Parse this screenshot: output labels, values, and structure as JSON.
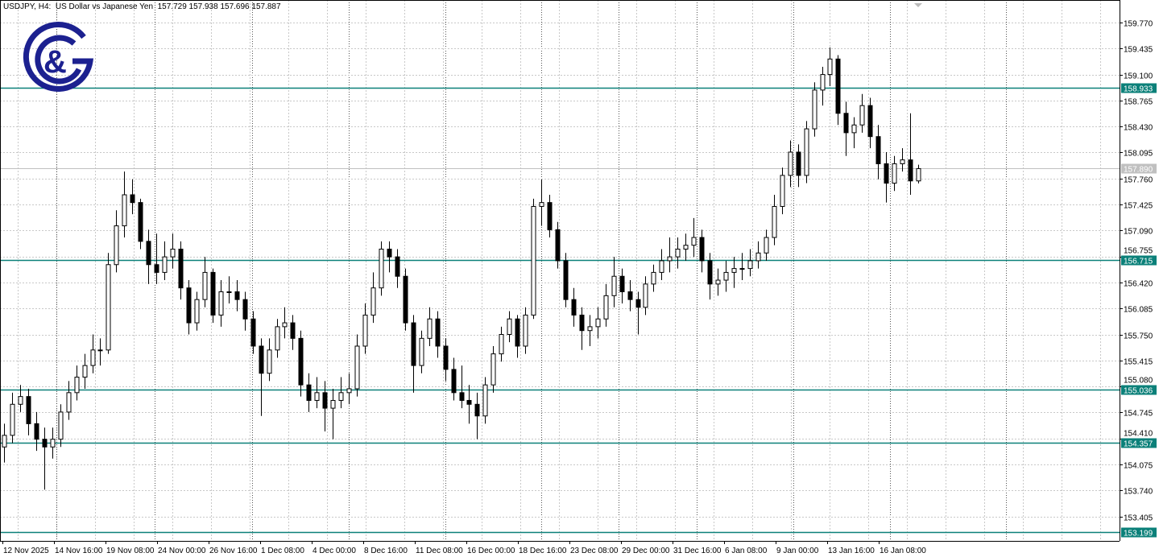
{
  "header": {
    "symbol": "USDJPY, H4:",
    "description": "US Dollar vs Japanese Yen",
    "ohlc": "157.729 157.938 157.696 157.887"
  },
  "logo": {
    "text": "G&G",
    "color": "#1c2190"
  },
  "colors": {
    "level_line": "#0b8079",
    "current_price": "#c0c0c0",
    "bull_body": "#ffffff",
    "bear_body": "#000000",
    "grid": "#c8c8c8"
  },
  "chart_data": {
    "type": "candlestick",
    "title": "USDJPY, H4",
    "ylim": [
      153.199,
      159.95
    ],
    "grid": true,
    "y_ticks": [
      "159.770",
      "159.435",
      "159.100",
      "158.765",
      "158.430",
      "158.095",
      "157.760",
      "157.425",
      "157.090",
      "156.755",
      "156.420",
      "156.085",
      "155.750",
      "155.415",
      "155.080",
      "154.745",
      "154.410",
      "154.075",
      "153.740",
      "153.405"
    ],
    "x_ticks": [
      "12 Nov 2025",
      "14 Nov 16:00",
      "19 Nov 08:00",
      "24 Nov 00:00",
      "26 Nov 16:00",
      "1 Dec 08:00",
      "4 Dec 00:00",
      "8 Dec 16:00",
      "11 Dec 08:00",
      "16 Dec 00:00",
      "18 Dec 16:00",
      "23 Dec 08:00",
      "29 Dec 00:00",
      "31 Dec 16:00",
      "6 Jan 08:00",
      "9 Jan 00:00",
      "13 Jan 16:00",
      "16 Jan 08:00"
    ],
    "levels": [
      "158.933",
      "156.715",
      "155.036",
      "154.357",
      "153.199"
    ],
    "current_price": "157.890",
    "candles_ohlc": [
      [
        154.3,
        154.6,
        154.1,
        154.45
      ],
      [
        154.45,
        155.0,
        154.35,
        154.85
      ],
      [
        154.85,
        155.1,
        154.75,
        154.95
      ],
      [
        154.95,
        155.05,
        154.45,
        154.6
      ],
      [
        154.6,
        154.75,
        154.25,
        154.4
      ],
      [
        154.4,
        154.55,
        153.75,
        154.3
      ],
      [
        154.3,
        154.55,
        154.15,
        154.4
      ],
      [
        154.4,
        154.85,
        154.3,
        154.75
      ],
      [
        154.75,
        155.15,
        154.65,
        155.0
      ],
      [
        155.0,
        155.35,
        154.9,
        155.2
      ],
      [
        155.2,
        155.5,
        155.05,
        155.35
      ],
      [
        155.35,
        155.75,
        155.25,
        155.55
      ],
      [
        155.55,
        155.7,
        155.35,
        155.55
      ],
      [
        155.55,
        156.8,
        155.5,
        156.65
      ],
      [
        156.65,
        157.35,
        156.55,
        157.15
      ],
      [
        157.15,
        157.85,
        157.0,
        157.55
      ],
      [
        157.55,
        157.75,
        157.3,
        157.45
      ],
      [
        157.45,
        157.5,
        156.85,
        156.95
      ],
      [
        156.95,
        157.1,
        156.4,
        156.65
      ],
      [
        156.65,
        157.05,
        156.4,
        156.55
      ],
      [
        156.55,
        156.95,
        156.45,
        156.75
      ],
      [
        156.75,
        157.05,
        156.6,
        156.85
      ],
      [
        156.85,
        156.95,
        156.2,
        156.35
      ],
      [
        156.35,
        156.45,
        155.75,
        155.9
      ],
      [
        155.9,
        156.3,
        155.8,
        156.2
      ],
      [
        156.2,
        156.75,
        156.1,
        156.55
      ],
      [
        156.55,
        156.6,
        155.9,
        156.0
      ],
      [
        156.0,
        156.45,
        155.85,
        156.3
      ],
      [
        156.3,
        156.5,
        156.15,
        156.3
      ],
      [
        156.3,
        156.45,
        156.05,
        156.2
      ],
      [
        156.2,
        156.3,
        155.8,
        155.95
      ],
      [
        155.95,
        156.05,
        155.5,
        155.6
      ],
      [
        155.6,
        155.7,
        154.7,
        155.25
      ],
      [
        155.25,
        155.7,
        155.15,
        155.55
      ],
      [
        155.55,
        155.95,
        155.45,
        155.85
      ],
      [
        155.85,
        156.1,
        155.7,
        155.9
      ],
      [
        155.9,
        156.0,
        155.55,
        155.7
      ],
      [
        155.7,
        155.8,
        154.95,
        155.1
      ],
      [
        155.1,
        155.25,
        154.75,
        154.9
      ],
      [
        154.9,
        155.2,
        154.8,
        155.0
      ],
      [
        155.0,
        155.15,
        154.5,
        154.8
      ],
      [
        154.8,
        155.05,
        154.4,
        154.9
      ],
      [
        154.9,
        155.2,
        154.8,
        155.0
      ],
      [
        155.0,
        155.25,
        154.85,
        155.05
      ],
      [
        155.05,
        155.75,
        154.95,
        155.6
      ],
      [
        155.6,
        156.15,
        155.5,
        156.0
      ],
      [
        156.0,
        156.55,
        155.9,
        156.35
      ],
      [
        156.35,
        156.95,
        156.25,
        156.85
      ],
      [
        156.85,
        156.95,
        156.55,
        156.75
      ],
      [
        156.75,
        156.85,
        156.35,
        156.5
      ],
      [
        156.5,
        156.6,
        155.8,
        155.9
      ],
      [
        155.9,
        156.0,
        155.0,
        155.35
      ],
      [
        155.35,
        155.8,
        155.25,
        155.7
      ],
      [
        155.7,
        156.1,
        155.6,
        155.95
      ],
      [
        155.95,
        156.05,
        155.45,
        155.6
      ],
      [
        155.6,
        155.7,
        155.15,
        155.3
      ],
      [
        155.3,
        155.45,
        154.9,
        155.0
      ],
      [
        155.0,
        155.35,
        154.8,
        154.9
      ],
      [
        154.9,
        155.1,
        154.6,
        154.85
      ],
      [
        154.85,
        155.0,
        154.4,
        154.7
      ],
      [
        154.7,
        155.2,
        154.6,
        155.1
      ],
      [
        155.1,
        155.6,
        155.0,
        155.5
      ],
      [
        155.5,
        155.85,
        155.4,
        155.75
      ],
      [
        155.75,
        156.05,
        155.65,
        155.95
      ],
      [
        155.95,
        156.0,
        155.45,
        155.6
      ],
      [
        155.6,
        156.1,
        155.5,
        156.0
      ],
      [
        156.0,
        157.5,
        155.95,
        157.4
      ],
      [
        157.4,
        157.75,
        157.15,
        157.45
      ],
      [
        157.45,
        157.55,
        157.0,
        157.1
      ],
      [
        157.1,
        157.2,
        156.6,
        156.7
      ],
      [
        156.7,
        156.8,
        156.1,
        156.2
      ],
      [
        156.2,
        156.35,
        155.85,
        156.0
      ],
      [
        156.0,
        156.1,
        155.55,
        155.8
      ],
      [
        155.8,
        156.0,
        155.6,
        155.85
      ],
      [
        155.85,
        156.1,
        155.7,
        155.95
      ],
      [
        155.95,
        156.4,
        155.85,
        156.25
      ],
      [
        156.25,
        156.75,
        156.1,
        156.5
      ],
      [
        156.5,
        156.6,
        156.15,
        156.3
      ],
      [
        156.3,
        156.45,
        156.05,
        156.2
      ],
      [
        156.2,
        156.3,
        155.75,
        156.1
      ],
      [
        156.1,
        156.5,
        156.0,
        156.4
      ],
      [
        156.4,
        156.65,
        156.3,
        156.55
      ],
      [
        156.55,
        156.85,
        156.45,
        156.7
      ],
      [
        156.7,
        157.0,
        156.55,
        156.75
      ],
      [
        156.75,
        157.0,
        156.6,
        156.85
      ],
      [
        156.85,
        157.05,
        156.7,
        156.9
      ],
      [
        156.9,
        157.25,
        156.75,
        157.0
      ],
      [
        157.0,
        157.1,
        156.55,
        156.7
      ],
      [
        156.7,
        156.8,
        156.2,
        156.4
      ],
      [
        156.4,
        156.6,
        156.25,
        156.45
      ],
      [
        156.45,
        156.7,
        156.3,
        156.55
      ],
      [
        156.55,
        156.75,
        156.35,
        156.6
      ],
      [
        156.6,
        156.8,
        156.45,
        156.6
      ],
      [
        156.6,
        156.85,
        156.5,
        156.7
      ],
      [
        156.7,
        156.95,
        156.6,
        156.8
      ],
      [
        156.8,
        157.1,
        156.7,
        157.0
      ],
      [
        157.0,
        157.55,
        156.9,
        157.4
      ],
      [
        157.4,
        157.9,
        157.3,
        157.8
      ],
      [
        157.8,
        158.25,
        157.65,
        158.1
      ],
      [
        158.1,
        158.2,
        157.65,
        157.8
      ],
      [
        157.8,
        158.5,
        157.7,
        158.4
      ],
      [
        158.4,
        159.0,
        158.3,
        158.9
      ],
      [
        158.9,
        159.2,
        158.7,
        159.1
      ],
      [
        159.1,
        159.45,
        158.95,
        159.3
      ],
      [
        159.3,
        159.35,
        158.45,
        158.6
      ],
      [
        158.6,
        158.75,
        158.05,
        158.35
      ],
      [
        158.35,
        158.55,
        158.15,
        158.45
      ],
      [
        158.45,
        158.85,
        158.35,
        158.7
      ],
      [
        158.7,
        158.8,
        158.15,
        158.3
      ],
      [
        158.3,
        158.45,
        157.75,
        157.95
      ],
      [
        157.95,
        158.1,
        157.45,
        157.7
      ],
      [
        157.7,
        158.05,
        157.6,
        157.95
      ],
      [
        157.95,
        158.15,
        157.85,
        158.0
      ],
      [
        158.0,
        158.6,
        157.55,
        157.729
      ],
      [
        157.729,
        157.938,
        157.696,
        157.887
      ]
    ]
  }
}
